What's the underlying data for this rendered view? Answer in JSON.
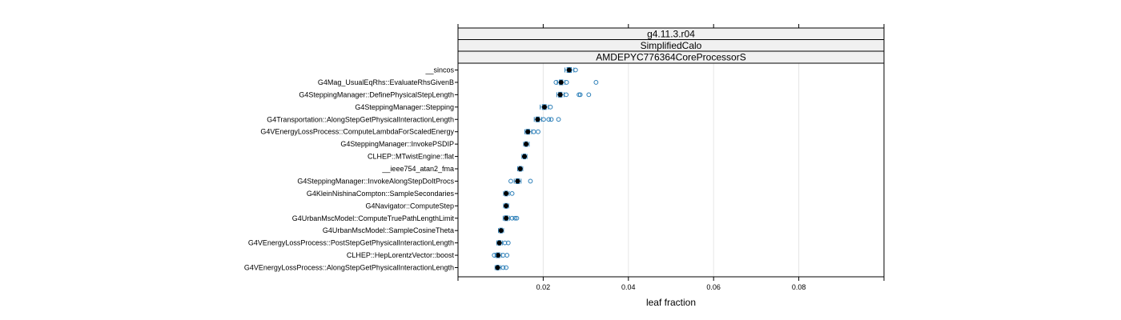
{
  "chart_data": {
    "type": "box",
    "strips": [
      "g4.11.3.r04",
      "SimplifiedCalo",
      "AMDEPYC776364CoreProcessorS"
    ],
    "xlabel": "leaf fraction",
    "xlim": [
      0.0,
      0.1
    ],
    "xticks": [
      0.02,
      0.04,
      0.06,
      0.08
    ],
    "xtick_labels": [
      "0.02",
      "0.04",
      "0.06",
      "0.08"
    ],
    "grid": "vertical",
    "colors": {
      "box": "#2c7fb8",
      "median": "#000000",
      "outlier": "#2c7fb8",
      "strip_bg": "#f0f0f0",
      "grid": "#e6e6e6"
    },
    "categories": [
      {
        "label": "__sincos",
        "min": 0.0251,
        "q1": 0.0256,
        "median": 0.0261,
        "q3": 0.0266,
        "max": 0.0272,
        "outliers": [
          0.0276
        ]
      },
      {
        "label": "G4Mag_UsualEqRhs::EvaluateRhsGivenB",
        "min": 0.0233,
        "q1": 0.0238,
        "median": 0.0242,
        "q3": 0.0246,
        "max": 0.0251,
        "outliers": [
          0.023,
          0.0255,
          0.0324
        ]
      },
      {
        "label": "G4SteppingManager::DefinePhysicalStepLength",
        "min": 0.0232,
        "q1": 0.0236,
        "median": 0.024,
        "q3": 0.0244,
        "max": 0.0249,
        "outliers": [
          0.0254,
          0.0284,
          0.0287,
          0.0307
        ]
      },
      {
        "label": "G4SteppingManager::Stepping",
        "min": 0.0193,
        "q1": 0.0198,
        "median": 0.0203,
        "q3": 0.0207,
        "max": 0.0212,
        "outliers": [
          0.0217
        ]
      },
      {
        "label": "G4Transportation::AlongStepGetPhysicalInteractionLength",
        "min": 0.0179,
        "q1": 0.0183,
        "median": 0.0187,
        "q3": 0.0191,
        "max": 0.0196,
        "outliers": [
          0.0201,
          0.0213,
          0.0219,
          0.0236
        ]
      },
      {
        "label": "G4VEnergyLossProcess::ComputeLambdaForScaledEnergy",
        "min": 0.0157,
        "q1": 0.016,
        "median": 0.0164,
        "q3": 0.0168,
        "max": 0.0173,
        "outliers": [
          0.0178,
          0.0188
        ]
      },
      {
        "label": "G4SteppingManager::InvokePSDIP",
        "min": 0.0154,
        "q1": 0.0157,
        "median": 0.016,
        "q3": 0.0163,
        "max": 0.0167,
        "outliers": []
      },
      {
        "label": "CLHEP::MTwistEngine::flat",
        "min": 0.015,
        "q1": 0.0153,
        "median": 0.0156,
        "q3": 0.0159,
        "max": 0.0162,
        "outliers": []
      },
      {
        "label": "__ieee754_atan2_fma",
        "min": 0.014,
        "q1": 0.0143,
        "median": 0.0146,
        "q3": 0.0149,
        "max": 0.0152,
        "outliers": []
      },
      {
        "label": "G4SteppingManager::InvokeAlongStepDoItProcs",
        "min": 0.0132,
        "q1": 0.0136,
        "median": 0.014,
        "q3": 0.0144,
        "max": 0.0148,
        "outliers": [
          0.0124,
          0.017
        ]
      },
      {
        "label": "G4KleinNishinaCompton::SampleSecondaries",
        "min": 0.0107,
        "q1": 0.011,
        "median": 0.0113,
        "q3": 0.0116,
        "max": 0.012,
        "outliers": [
          0.0127
        ]
      },
      {
        "label": "G4Navigator::ComputeStep",
        "min": 0.0107,
        "q1": 0.011,
        "median": 0.0113,
        "q3": 0.0116,
        "max": 0.0119,
        "outliers": []
      },
      {
        "label": "G4UrbanMscModel::ComputeTruePathLengthLimit",
        "min": 0.0106,
        "q1": 0.0109,
        "median": 0.0113,
        "q3": 0.0117,
        "max": 0.0121,
        "outliers": [
          0.0127,
          0.0134,
          0.0138
        ]
      },
      {
        "label": "G4UrbanMscModel::SampleCosineTheta",
        "min": 0.0095,
        "q1": 0.0098,
        "median": 0.0101,
        "q3": 0.0104,
        "max": 0.0107,
        "outliers": []
      },
      {
        "label": "G4VEnergyLossProcess::PostStepGetPhysicalInteractionLength",
        "min": 0.0091,
        "q1": 0.0094,
        "median": 0.0097,
        "q3": 0.01,
        "max": 0.0104,
        "outliers": [
          0.011,
          0.0118
        ]
      },
      {
        "label": "CLHEP::HepLorentzVector::boost",
        "min": 0.0087,
        "q1": 0.009,
        "median": 0.0094,
        "q3": 0.0098,
        "max": 0.0102,
        "outliers": [
          0.0085,
          0.0106,
          0.0115
        ]
      },
      {
        "label": "G4VEnergyLossProcess::AlongStepGetPhysicalInteractionLength",
        "min": 0.0087,
        "q1": 0.009,
        "median": 0.0093,
        "q3": 0.0096,
        "max": 0.01,
        "outliers": [
          0.0106,
          0.0113
        ]
      }
    ]
  }
}
